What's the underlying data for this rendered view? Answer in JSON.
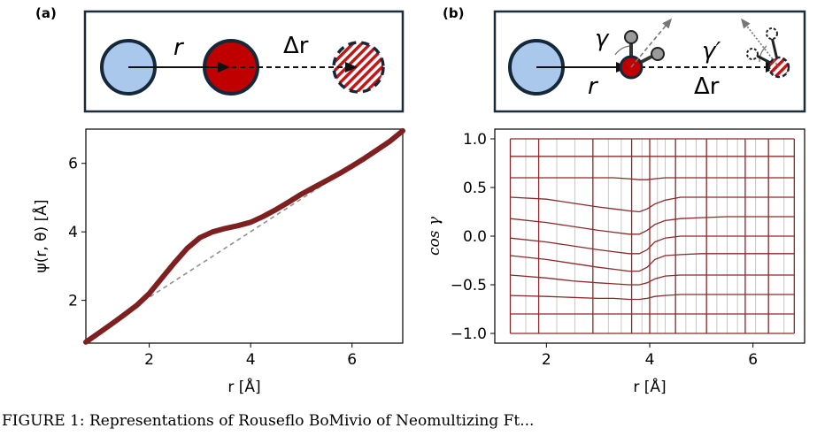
{
  "panel_a": {
    "label": "(a)",
    "schematic": {
      "r_label": "r",
      "dr_label": "Δr"
    },
    "chart_data": {
      "type": "line",
      "xlabel": "r  [Å]",
      "ylabel": "ψ(r, θ)  [Å]",
      "xlim": [
        0.75,
        7.0
      ],
      "ylim": [
        0.75,
        7.0
      ],
      "xticks": [
        "2",
        "4",
        "6"
      ],
      "yticks": [
        "2",
        "4",
        "6"
      ],
      "grid": false,
      "series": [
        {
          "style": "thick",
          "color": "#7f2020",
          "x": [
            0.75,
            1.0,
            1.25,
            1.5,
            1.75,
            2.0,
            2.25,
            2.5,
            2.75,
            3.0,
            3.25,
            3.5,
            3.75,
            4.0,
            4.25,
            4.5,
            4.75,
            5.0,
            5.25,
            5.5,
            5.75,
            6.0,
            6.25,
            6.5,
            6.75,
            7.0
          ],
          "y": [
            0.78,
            1.04,
            1.3,
            1.57,
            1.85,
            2.2,
            2.65,
            3.1,
            3.52,
            3.83,
            4.0,
            4.1,
            4.18,
            4.28,
            4.45,
            4.65,
            4.87,
            5.1,
            5.3,
            5.5,
            5.7,
            5.92,
            6.15,
            6.4,
            6.65,
            6.95
          ]
        },
        {
          "style": "dashed",
          "color": "#909090",
          "x": [
            1.75,
            6.0
          ],
          "y": [
            1.85,
            5.92
          ]
        }
      ]
    }
  },
  "panel_b": {
    "label": "(b)",
    "schematic": {
      "gamma_label": "γ",
      "gamma_prime_label": "γ′",
      "r_label": "r",
      "dr_label": "Δr"
    },
    "chart_data": {
      "type": "line",
      "xlabel": "r  [Å]",
      "ylabel": "cos γ",
      "xlim": [
        1.0,
        7.0
      ],
      "ylim": [
        -1.1,
        1.1
      ],
      "xticks": [
        "2",
        "4",
        "6"
      ],
      "yticks": [
        "−1.0",
        "−0.5",
        "0.0",
        "0.5",
        "1.0"
      ],
      "grid": true,
      "grid_x": [
        1.3,
        1.6,
        1.85,
        2.2,
        2.55,
        2.9,
        3.2,
        3.45,
        3.65,
        3.85,
        4.0,
        4.15,
        4.3,
        4.5,
        4.7,
        4.9,
        5.1,
        5.3,
        5.5,
        5.7,
        5.85,
        6.05,
        6.3,
        6.6,
        6.8
      ],
      "vertical_lines_x": [
        1.3,
        1.85,
        2.9,
        3.65,
        4.0,
        4.5,
        5.1,
        5.85,
        6.3,
        6.8
      ],
      "curves_x": [
        1.3,
        2.0,
        2.5,
        3.0,
        3.3,
        3.6,
        3.8,
        3.95,
        4.1,
        4.3,
        4.6,
        5.0,
        5.5,
        6.0,
        6.5,
        6.8
      ],
      "curves_y": [
        [
          1.0,
          1.0,
          1.0,
          1.0,
          1.0,
          1.0,
          1.0,
          1.0,
          1.0,
          1.0,
          1.0,
          1.0,
          1.0,
          1.0,
          1.0,
          1.0
        ],
        [
          0.82,
          0.82,
          0.82,
          0.82,
          0.82,
          0.82,
          0.82,
          0.82,
          0.82,
          0.82,
          0.82,
          0.82,
          0.82,
          0.82,
          0.82,
          0.82
        ],
        [
          0.6,
          0.6,
          0.6,
          0.6,
          0.6,
          0.59,
          0.58,
          0.58,
          0.59,
          0.6,
          0.6,
          0.6,
          0.6,
          0.6,
          0.6,
          0.6
        ],
        [
          0.4,
          0.38,
          0.34,
          0.3,
          0.28,
          0.26,
          0.25,
          0.28,
          0.33,
          0.37,
          0.4,
          0.4,
          0.4,
          0.4,
          0.4,
          0.4
        ],
        [
          0.18,
          0.14,
          0.1,
          0.06,
          0.04,
          0.02,
          0.02,
          0.06,
          0.12,
          0.16,
          0.18,
          0.19,
          0.2,
          0.2,
          0.2,
          0.2
        ],
        [
          -0.02,
          -0.06,
          -0.1,
          -0.14,
          -0.16,
          -0.18,
          -0.18,
          -0.14,
          -0.06,
          -0.02,
          0.0,
          0.0,
          0.0,
          0.0,
          0.0,
          0.0
        ],
        [
          -0.2,
          -0.24,
          -0.28,
          -0.32,
          -0.34,
          -0.36,
          -0.36,
          -0.32,
          -0.24,
          -0.2,
          -0.19,
          -0.18,
          -0.18,
          -0.18,
          -0.18,
          -0.18
        ],
        [
          -0.4,
          -0.43,
          -0.46,
          -0.48,
          -0.49,
          -0.5,
          -0.5,
          -0.48,
          -0.44,
          -0.41,
          -0.4,
          -0.4,
          -0.4,
          -0.4,
          -0.4,
          -0.4
        ],
        [
          -0.61,
          -0.62,
          -0.63,
          -0.64,
          -0.64,
          -0.65,
          -0.65,
          -0.64,
          -0.62,
          -0.61,
          -0.6,
          -0.6,
          -0.6,
          -0.6,
          -0.6,
          -0.6
        ],
        [
          -0.8,
          -0.8,
          -0.8,
          -0.8,
          -0.8,
          -0.8,
          -0.8,
          -0.8,
          -0.8,
          -0.8,
          -0.8,
          -0.8,
          -0.8,
          -0.8,
          -0.8,
          -0.8
        ],
        [
          -1.0,
          -1.0,
          -1.0,
          -1.0,
          -1.0,
          -1.0,
          -1.0,
          -1.0,
          -1.0,
          -1.0,
          -1.0,
          -1.0,
          -1.0,
          -1.0,
          -1.0,
          -1.0
        ]
      ]
    }
  },
  "caption": "FIGURE 1: Representations of Rouseflo BoMivio of Neomultizing Ft..."
}
